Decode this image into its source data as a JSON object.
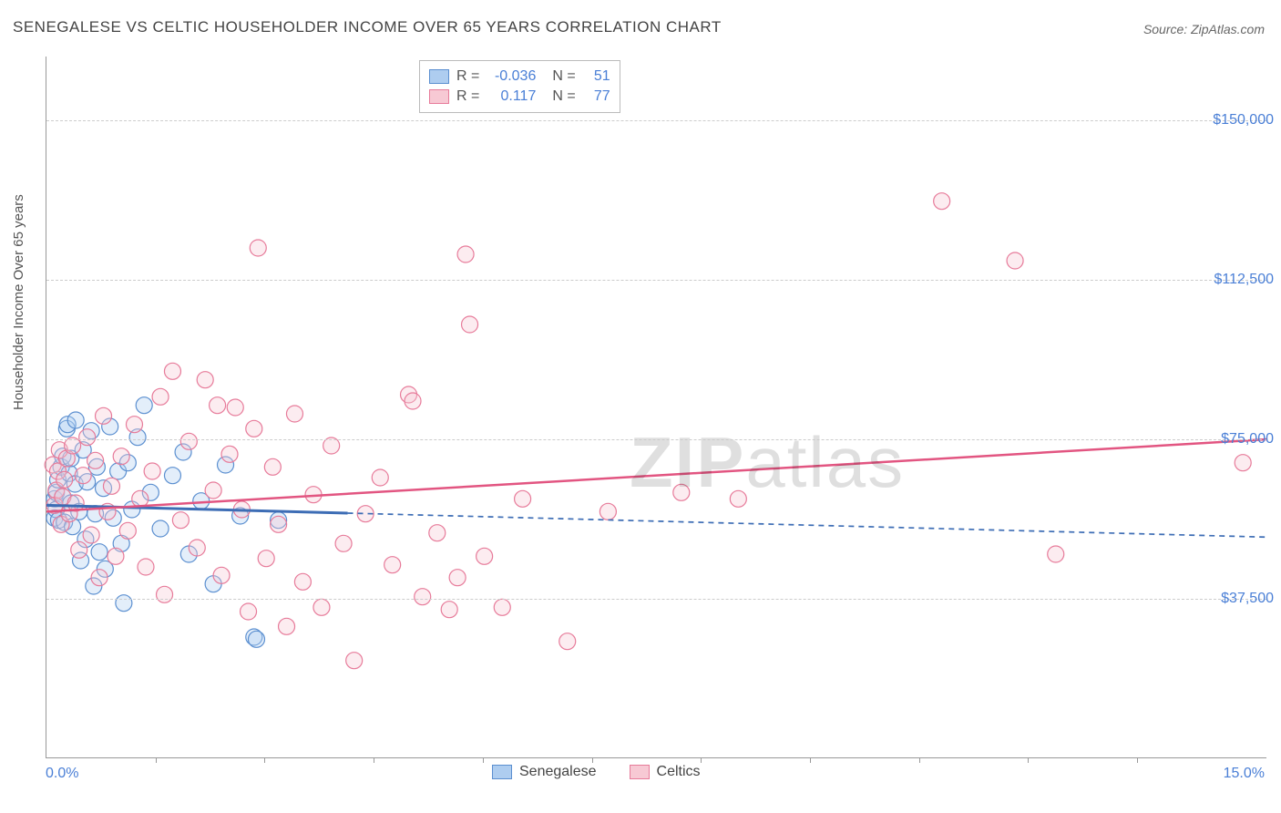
{
  "title": "SENEGALESE VS CELTIC HOUSEHOLDER INCOME OVER 65 YEARS CORRELATION CHART",
  "source": "Source: ZipAtlas.com",
  "watermark": "ZIPatlas",
  "chart": {
    "type": "scatter",
    "background_color": "#ffffff",
    "grid_color": "#cccccc",
    "axis_color": "#999999",
    "xlim": [
      0,
      15
    ],
    "ylim": [
      0,
      165000
    ],
    "x_unit": "%",
    "xaxis_min_label": "0.0%",
    "xaxis_max_label": "15.0%",
    "xtick_positions_pct": [
      1.34,
      2.68,
      4.02,
      5.36,
      6.7,
      8.04,
      9.38,
      10.72,
      12.06,
      13.4
    ],
    "ylabel": "Householder Income Over 65 years",
    "ylabel_fontsize": 15,
    "ytick_values": [
      37500,
      75000,
      112500,
      150000
    ],
    "ytick_labels": [
      "$37,500",
      "$75,000",
      "$112,500",
      "$150,000"
    ],
    "ytick_color": "#4a7fd6",
    "marker_radius": 9,
    "marker_stroke_width": 1.2,
    "marker_fill_opacity": 0.35,
    "series": [
      {
        "name": "Senegalese",
        "color_fill": "#aecdf0",
        "color_stroke": "#5b8fd0",
        "trend": {
          "x1": 0,
          "y1": 59500,
          "x2": 15,
          "y2": 52000,
          "dash": "6,5",
          "stroke": "#3d6db5",
          "width": 2,
          "solid_until_x": 3.7
        },
        "R": "-0.036",
        "N": "51",
        "points": [
          [
            0.1,
            56500
          ],
          [
            0.1,
            61000
          ],
          [
            0.12,
            58500
          ],
          [
            0.12,
            62500
          ],
          [
            0.14,
            65500
          ],
          [
            0.15,
            56000
          ],
          [
            0.18,
            68500
          ],
          [
            0.2,
            61500
          ],
          [
            0.2,
            71000
          ],
          [
            0.22,
            55500
          ],
          [
            0.25,
            77500
          ],
          [
            0.26,
            78500
          ],
          [
            0.28,
            67000
          ],
          [
            0.3,
            60000
          ],
          [
            0.3,
            70500
          ],
          [
            0.32,
            54500
          ],
          [
            0.35,
            64500
          ],
          [
            0.36,
            79500
          ],
          [
            0.4,
            58000
          ],
          [
            0.42,
            46500
          ],
          [
            0.45,
            72500
          ],
          [
            0.48,
            51500
          ],
          [
            0.5,
            65000
          ],
          [
            0.55,
            77000
          ],
          [
            0.58,
            40500
          ],
          [
            0.6,
            57500
          ],
          [
            0.62,
            68500
          ],
          [
            0.65,
            48500
          ],
          [
            0.7,
            63500
          ],
          [
            0.72,
            44500
          ],
          [
            0.78,
            78000
          ],
          [
            0.82,
            56500
          ],
          [
            0.88,
            67500
          ],
          [
            0.92,
            50500
          ],
          [
            0.95,
            36500
          ],
          [
            1.0,
            69500
          ],
          [
            1.05,
            58500
          ],
          [
            1.12,
            75500
          ],
          [
            1.2,
            83000
          ],
          [
            1.28,
            62500
          ],
          [
            1.4,
            54000
          ],
          [
            1.55,
            66500
          ],
          [
            1.68,
            72000
          ],
          [
            1.75,
            48000
          ],
          [
            1.9,
            60500
          ],
          [
            2.05,
            41000
          ],
          [
            2.2,
            69000
          ],
          [
            2.38,
            57000
          ],
          [
            2.55,
            28500
          ],
          [
            2.58,
            28000
          ],
          [
            2.85,
            56000
          ]
        ]
      },
      {
        "name": "Celtics",
        "color_fill": "#f7c9d4",
        "color_stroke": "#e77b9a",
        "trend": {
          "x1": 0,
          "y1": 58000,
          "x2": 15,
          "y2": 75000,
          "dash": "none",
          "stroke": "#e25581",
          "width": 2.5,
          "solid_until_x": 15
        },
        "R": "0.117",
        "N": "77",
        "points": [
          [
            0.08,
            69000
          ],
          [
            0.1,
            59500
          ],
          [
            0.12,
            63000
          ],
          [
            0.14,
            67500
          ],
          [
            0.16,
            72500
          ],
          [
            0.18,
            55000
          ],
          [
            0.2,
            61500
          ],
          [
            0.22,
            65500
          ],
          [
            0.25,
            70500
          ],
          [
            0.28,
            57500
          ],
          [
            0.32,
            73500
          ],
          [
            0.36,
            60000
          ],
          [
            0.4,
            49000
          ],
          [
            0.45,
            66500
          ],
          [
            0.5,
            75500
          ],
          [
            0.55,
            52500
          ],
          [
            0.6,
            70000
          ],
          [
            0.65,
            42500
          ],
          [
            0.7,
            80500
          ],
          [
            0.75,
            58000
          ],
          [
            0.8,
            64000
          ],
          [
            0.85,
            47500
          ],
          [
            0.92,
            71000
          ],
          [
            1.0,
            53500
          ],
          [
            1.08,
            78500
          ],
          [
            1.15,
            61000
          ],
          [
            1.22,
            45000
          ],
          [
            1.3,
            67500
          ],
          [
            1.4,
            85000
          ],
          [
            1.45,
            38500
          ],
          [
            1.55,
            91000
          ],
          [
            1.65,
            56000
          ],
          [
            1.75,
            74500
          ],
          [
            1.85,
            49500
          ],
          [
            1.95,
            89000
          ],
          [
            2.05,
            63000
          ],
          [
            2.1,
            83000
          ],
          [
            2.15,
            43000
          ],
          [
            2.25,
            71500
          ],
          [
            2.32,
            82500
          ],
          [
            2.4,
            58500
          ],
          [
            2.48,
            34500
          ],
          [
            2.55,
            77500
          ],
          [
            2.6,
            120000
          ],
          [
            2.7,
            47000
          ],
          [
            2.78,
            68500
          ],
          [
            2.85,
            55000
          ],
          [
            2.95,
            31000
          ],
          [
            3.05,
            81000
          ],
          [
            3.15,
            41500
          ],
          [
            3.28,
            62000
          ],
          [
            3.38,
            35500
          ],
          [
            3.5,
            73500
          ],
          [
            3.65,
            50500
          ],
          [
            3.78,
            23000
          ],
          [
            3.92,
            57500
          ],
          [
            4.1,
            66000
          ],
          [
            4.25,
            45500
          ],
          [
            4.45,
            85500
          ],
          [
            4.5,
            84000
          ],
          [
            4.62,
            38000
          ],
          [
            4.8,
            53000
          ],
          [
            4.95,
            35000
          ],
          [
            5.05,
            42500
          ],
          [
            5.15,
            118500
          ],
          [
            5.2,
            102000
          ],
          [
            5.38,
            47500
          ],
          [
            5.6,
            35500
          ],
          [
            5.85,
            61000
          ],
          [
            6.4,
            27500
          ],
          [
            6.9,
            58000
          ],
          [
            7.8,
            62500
          ],
          [
            8.5,
            61000
          ],
          [
            11.0,
            131000
          ],
          [
            11.9,
            117000
          ],
          [
            12.4,
            48000
          ],
          [
            14.7,
            69500
          ]
        ]
      }
    ],
    "legend_top": {
      "rows": [
        {
          "swatch_fill": "#aecdf0",
          "swatch_stroke": "#5b8fd0",
          "R_label": "R =",
          "R_value": "-0.036",
          "N_label": "N =",
          "N_value": "51"
        },
        {
          "swatch_fill": "#f7c9d4",
          "swatch_stroke": "#e77b9a",
          "R_label": "R =",
          "R_value": "0.117",
          "N_label": "N =",
          "N_value": "77"
        }
      ]
    },
    "legend_bottom": [
      {
        "swatch_fill": "#aecdf0",
        "swatch_stroke": "#5b8fd0",
        "label": "Senegalese"
      },
      {
        "swatch_fill": "#f7c9d4",
        "swatch_stroke": "#e77b9a",
        "label": "Celtics"
      }
    ]
  }
}
